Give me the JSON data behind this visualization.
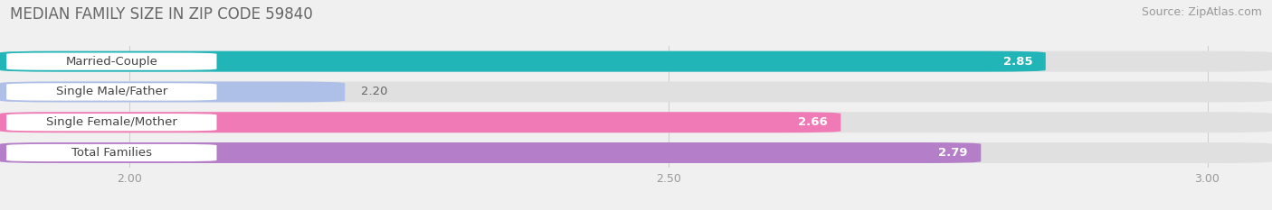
{
  "title": "MEDIAN FAMILY SIZE IN ZIP CODE 59840",
  "source": "Source: ZipAtlas.com",
  "categories": [
    "Married-Couple",
    "Single Male/Father",
    "Single Female/Mother",
    "Total Families"
  ],
  "values": [
    2.85,
    2.2,
    2.66,
    2.79
  ],
  "bar_colors": [
    "#22b5b8",
    "#afc0e8",
    "#f07ab5",
    "#b57ec8"
  ],
  "background_color": "#f0f0f0",
  "bar_bg_color": "#e0e0e0",
  "xlim": [
    1.88,
    3.06
  ],
  "xticks": [
    2.0,
    2.5,
    3.0
  ],
  "bar_height": 0.68,
  "value_fontsize": 9.5,
  "label_fontsize": 9.5,
  "title_fontsize": 12,
  "source_fontsize": 9
}
